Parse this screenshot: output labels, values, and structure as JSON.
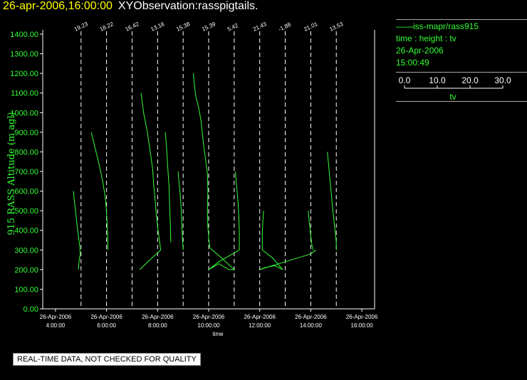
{
  "header": {
    "time": "26-apr-2006,16:00:00",
    "name": "XYObservation:rasspigtails."
  },
  "legend": {
    "series_label": "iss-mapr/rass915",
    "axes_label": "time : height : tv",
    "date": "26-Apr-2006",
    "time": "15:00:49",
    "scale_ticks": [
      "0.0",
      "10.0",
      "20.0",
      "30.0"
    ],
    "scale_label": "tv"
  },
  "warning": "REAL-TIME DATA, NOT CHECKED FOR QUALITY",
  "colors": {
    "trace": "#33ff33",
    "title_time": "#ffff00",
    "grid": "#ffffff"
  },
  "chart_data": {
    "type": "line",
    "xlabel": "time",
    "ylabel": "915 RASS Altitude (m agl)",
    "ylim": [
      0,
      1400
    ],
    "xlim_hours": [
      3.5,
      16.5
    ],
    "y_ticks": [
      "0.00",
      "100.00",
      "200.00",
      "300.00",
      "400.00",
      "500.00",
      "600.00",
      "700.00",
      "800.00",
      "900.00",
      "1000.00",
      "1100.00",
      "1200.00",
      "1300.00",
      "1400.00"
    ],
    "x_ticks": [
      {
        "hour": 4,
        "date": "26-Apr-2006",
        "time": "4:00:00"
      },
      {
        "hour": 6,
        "date": "26-Apr-2006",
        "time": "6:00:00"
      },
      {
        "hour": 8,
        "date": "26-Apr-2006",
        "time": "8:00:00"
      },
      {
        "hour": 10,
        "date": "26-Apr-2006",
        "time": "10:00:00"
      },
      {
        "hour": 12,
        "date": "26-Apr-2006",
        "time": "12:00:00"
      },
      {
        "hour": 14,
        "date": "26-Apr-2006",
        "time": "14:00:00"
      },
      {
        "hour": 16,
        "date": "26-Apr-2006",
        "time": "16:00:00"
      }
    ],
    "profiles": [
      {
        "hour": 5,
        "label": "19.23"
      },
      {
        "hour": 6,
        "label": "18.22"
      },
      {
        "hour": 7,
        "label": "16.42"
      },
      {
        "hour": 8,
        "label": "13.16"
      },
      {
        "hour": 9,
        "label": "15.38"
      },
      {
        "hour": 10,
        "label": "15.39"
      },
      {
        "hour": 11,
        "label": "5.42"
      },
      {
        "hour": 12,
        "label": "21.43"
      },
      {
        "hour": 13,
        "label": "-1.88"
      },
      {
        "hour": 14,
        "label": "21.01"
      },
      {
        "hour": 15,
        "label": "13.53"
      }
    ],
    "series": [
      {
        "points": [
          [
            4.7,
            600
          ],
          [
            4.75,
            540
          ],
          [
            4.8,
            480
          ],
          [
            4.85,
            420
          ],
          [
            4.9,
            370
          ],
          [
            4.95,
            320
          ],
          [
            4.97,
            280
          ],
          [
            4.92,
            240
          ],
          [
            4.9,
            200
          ]
        ]
      },
      {
        "points": [
          [
            5.4,
            900
          ],
          [
            5.55,
            820
          ],
          [
            5.7,
            740
          ],
          [
            5.85,
            650
          ],
          [
            5.95,
            570
          ],
          [
            6.0,
            490
          ],
          [
            6.03,
            420
          ],
          [
            6.05,
            350
          ],
          [
            6.05,
            300
          ]
        ]
      },
      {
        "points": [
          [
            7.35,
            1100
          ],
          [
            7.45,
            1000
          ],
          [
            7.6,
            900
          ],
          [
            7.7,
            810
          ],
          [
            7.8,
            720
          ],
          [
            7.85,
            630
          ],
          [
            7.9,
            560
          ],
          [
            7.95,
            480
          ],
          [
            8.0,
            420
          ],
          [
            8.05,
            370
          ],
          [
            8.1,
            320
          ],
          [
            8.12,
            300
          ],
          [
            7.7,
            250
          ],
          [
            7.3,
            200
          ]
        ]
      },
      {
        "points": [
          [
            8.3,
            900
          ],
          [
            8.35,
            820
          ],
          [
            8.4,
            720
          ],
          [
            8.45,
            620
          ],
          [
            8.47,
            520
          ],
          [
            8.5,
            430
          ],
          [
            8.52,
            340
          ]
        ]
      },
      {
        "points": [
          [
            8.8,
            700
          ],
          [
            8.85,
            630
          ],
          [
            8.9,
            560
          ],
          [
            8.93,
            490
          ],
          [
            8.95,
            420
          ],
          [
            8.97,
            360
          ],
          [
            9.0,
            300
          ]
        ]
      },
      {
        "points": [
          [
            9.4,
            1200
          ],
          [
            9.45,
            1130
          ],
          [
            9.5,
            1080
          ],
          [
            9.6,
            1030
          ],
          [
            9.7,
            960
          ],
          [
            9.75,
            900
          ],
          [
            9.8,
            840
          ],
          [
            9.85,
            790
          ],
          [
            9.9,
            740
          ],
          [
            9.95,
            690
          ],
          [
            9.97,
            600
          ],
          [
            9.95,
            500
          ],
          [
            9.97,
            420
          ],
          [
            10.0,
            360
          ],
          [
            10.05,
            310
          ],
          [
            10.5,
            260
          ],
          [
            11.0,
            200
          ],
          [
            10.8,
            200
          ],
          [
            10.4,
            230
          ],
          [
            10.0,
            200
          ],
          [
            10.4,
            240
          ],
          [
            10.8,
            270
          ],
          [
            11.2,
            300
          ]
        ]
      },
      {
        "points": [
          [
            11.05,
            700
          ],
          [
            11.1,
            620
          ],
          [
            11.15,
            550
          ],
          [
            11.18,
            470
          ],
          [
            11.2,
            400
          ],
          [
            11.2,
            340
          ],
          [
            11.2,
            300
          ]
        ]
      },
      {
        "points": [
          [
            12.15,
            500
          ],
          [
            12.12,
            440
          ],
          [
            12.1,
            380
          ],
          [
            12.1,
            330
          ],
          [
            12.1,
            300
          ],
          [
            12.5,
            260
          ],
          [
            12.9,
            200
          ],
          [
            12.6,
            220
          ],
          [
            12.2,
            210
          ],
          [
            12.0,
            200
          ],
          [
            12.5,
            220
          ],
          [
            13.0,
            240
          ],
          [
            13.5,
            260
          ],
          [
            14.0,
            280
          ],
          [
            14.2,
            300
          ]
        ]
      },
      {
        "points": [
          [
            13.9,
            500
          ],
          [
            13.95,
            430
          ],
          [
            14.0,
            370
          ],
          [
            14.05,
            320
          ],
          [
            14.1,
            300
          ]
        ]
      },
      {
        "points": [
          [
            14.65,
            800
          ],
          [
            14.7,
            730
          ],
          [
            14.75,
            660
          ],
          [
            14.8,
            590
          ],
          [
            14.85,
            520
          ],
          [
            14.9,
            460
          ],
          [
            14.95,
            400
          ],
          [
            15.0,
            340
          ],
          [
            15.0,
            300
          ]
        ]
      }
    ]
  }
}
